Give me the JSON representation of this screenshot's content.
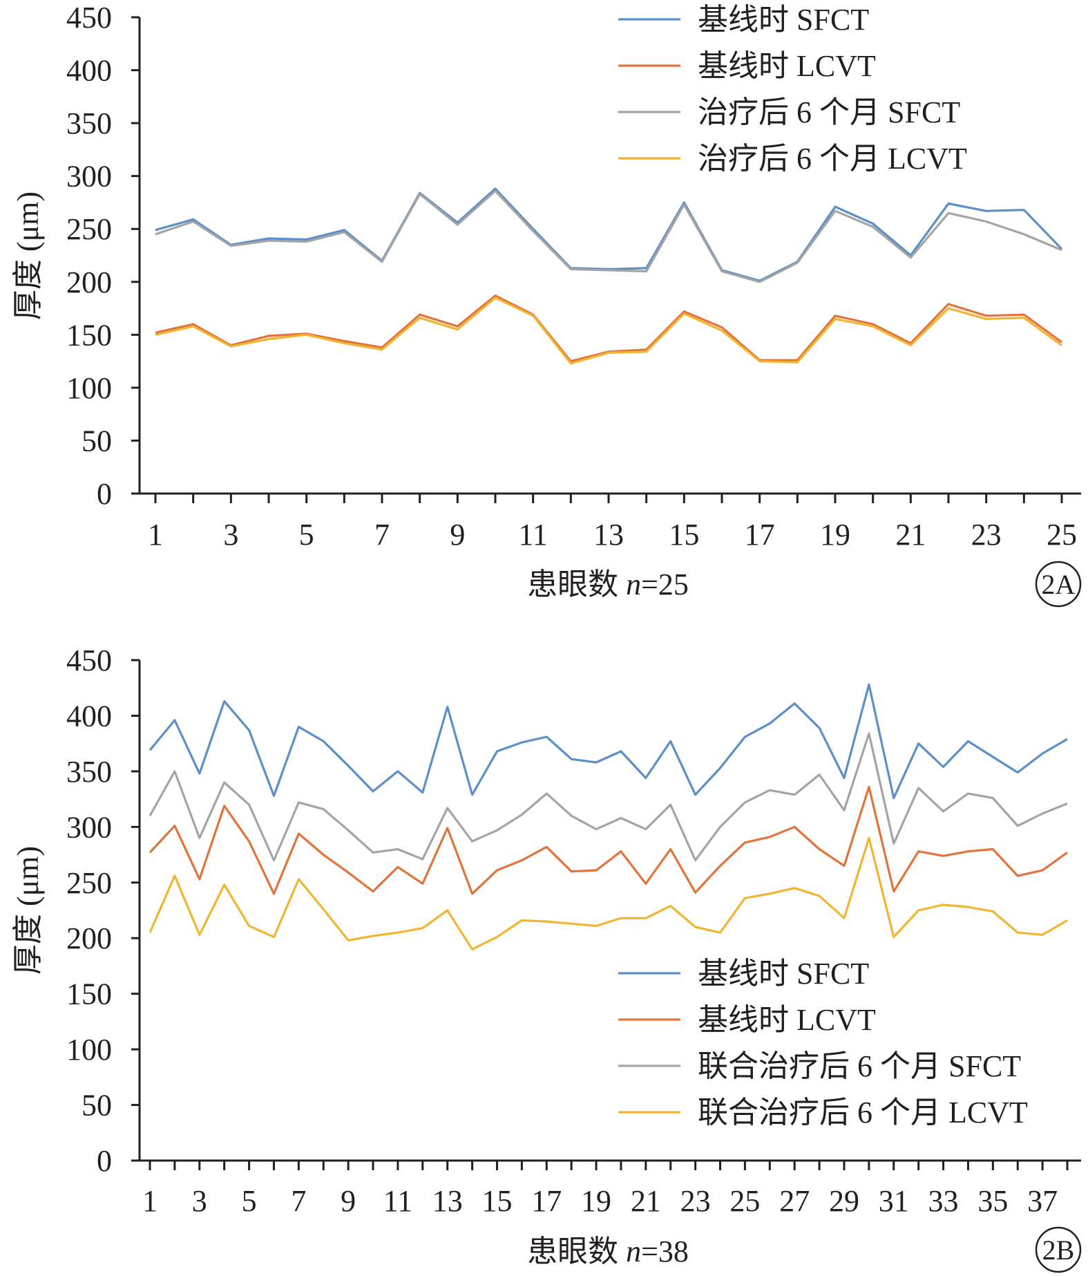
{
  "colors": {
    "axis": "#231f20",
    "SFCT_base": "#5b8fc9",
    "LCVT_base": "#e2733a",
    "SFCT_post": "#a4a4a4",
    "LCVT_post": "#f2b531"
  },
  "chart_data": [
    {
      "type": "line",
      "panel_label": "2A",
      "ylabel": "厚度 (μm)",
      "xlabel_prefix": "患眼数 ",
      "xlabel_var": "n",
      "xlabel_suffix": "=25",
      "ylim": [
        0,
        450
      ],
      "yticks": [
        "0",
        "50",
        "100",
        "150",
        "200",
        "250",
        "300",
        "350",
        "400",
        "450"
      ],
      "xticks": [
        "1",
        "3",
        "5",
        "7",
        "9",
        "11",
        "13",
        "15",
        "17",
        "19",
        "21",
        "23",
        "25"
      ],
      "x": [
        1,
        2,
        3,
        4,
        5,
        6,
        7,
        8,
        9,
        10,
        11,
        12,
        13,
        14,
        15,
        16,
        17,
        18,
        19,
        20,
        21,
        22,
        23,
        24,
        25
      ],
      "legend_position": "top-right",
      "series": [
        {
          "name": "基线时 SFCT",
          "color": "#5b8fc9",
          "values": [
            249,
            259,
            235,
            241,
            240,
            249,
            220,
            284,
            256,
            288,
            250,
            213,
            212,
            213,
            275,
            211,
            201,
            219,
            271,
            255,
            225,
            274,
            267,
            268,
            231
          ]
        },
        {
          "name": "基线时 LCVT",
          "color": "#e2733a",
          "values": [
            152,
            160,
            140,
            149,
            151,
            144,
            138,
            169,
            158,
            187,
            169,
            125,
            134,
            136,
            172,
            157,
            126,
            126,
            168,
            160,
            142,
            179,
            168,
            169,
            143
          ]
        },
        {
          "name": "治疗后 6 个月 SFCT",
          "color": "#a4a4a4",
          "values": [
            245,
            257,
            234,
            239,
            238,
            247,
            219,
            283,
            254,
            286,
            248,
            212,
            211,
            210,
            273,
            210,
            200,
            218,
            267,
            252,
            223,
            265,
            257,
            245,
            230
          ]
        },
        {
          "name": "治疗后 6 个月 LCVT",
          "color": "#f2b531",
          "values": [
            150,
            158,
            139,
            146,
            150,
            142,
            136,
            166,
            155,
            185,
            168,
            123,
            133,
            134,
            170,
            154,
            125,
            124,
            165,
            158,
            140,
            175,
            165,
            166,
            140
          ]
        }
      ]
    },
    {
      "type": "line",
      "panel_label": "2B",
      "ylabel": "厚度 (μm)",
      "xlabel_prefix": "患眼数 ",
      "xlabel_var": "n",
      "xlabel_suffix": "=38",
      "ylim": [
        0,
        450
      ],
      "yticks": [
        "0",
        "50",
        "100",
        "150",
        "200",
        "250",
        "300",
        "350",
        "400",
        "450"
      ],
      "xticks": [
        "1",
        "3",
        "5",
        "7",
        "9",
        "11",
        "13",
        "15",
        "17",
        "19",
        "21",
        "23",
        "25",
        "27",
        "29",
        "31",
        "33",
        "35",
        "37"
      ],
      "x": [
        1,
        2,
        3,
        4,
        5,
        6,
        7,
        8,
        9,
        10,
        11,
        12,
        13,
        14,
        15,
        16,
        17,
        18,
        19,
        20,
        21,
        22,
        23,
        24,
        25,
        26,
        27,
        28,
        29,
        30,
        31,
        32,
        33,
        34,
        35,
        36,
        37,
        38
      ],
      "legend_position": "bottom-right",
      "series": [
        {
          "name": "基线时 SFCT",
          "color": "#5b8fc9",
          "values": [
            369,
            396,
            348,
            413,
            387,
            328,
            390,
            377,
            355,
            332,
            350,
            331,
            408,
            329,
            368,
            376,
            381,
            361,
            358,
            368,
            344,
            377,
            329,
            353,
            381,
            393,
            411,
            389,
            344,
            428,
            326,
            375,
            354,
            377,
            363,
            349,
            366,
            379
          ]
        },
        {
          "name": "基线时 LCVT",
          "color": "#e2733a",
          "values": [
            277,
            301,
            253,
            319,
            287,
            240,
            294,
            275,
            259,
            242,
            264,
            249,
            299,
            240,
            261,
            270,
            282,
            260,
            261,
            278,
            249,
            280,
            241,
            265,
            286,
            291,
            300,
            280,
            265,
            336,
            242,
            278,
            274,
            278,
            280,
            256,
            261,
            277
          ]
        },
        {
          "name": "联合治疗后 6 个月 SFCT",
          "color": "#a4a4a4",
          "values": [
            310,
            350,
            290,
            340,
            320,
            270,
            322,
            316,
            297,
            277,
            280,
            271,
            317,
            287,
            297,
            311,
            330,
            310,
            298,
            308,
            298,
            320,
            270,
            300,
            322,
            333,
            329,
            347,
            315,
            384,
            285,
            335,
            314,
            330,
            326,
            301,
            312,
            321
          ]
        },
        {
          "name": "联合治疗后 6 个月 LCVT",
          "color": "#f2b531",
          "values": [
            205,
            256,
            203,
            248,
            211,
            201,
            253,
            226,
            198,
            202,
            205,
            209,
            225,
            190,
            201,
            216,
            215,
            213,
            211,
            218,
            218,
            229,
            210,
            205,
            236,
            240,
            245,
            238,
            218,
            290,
            201,
            225,
            230,
            228,
            224,
            205,
            203,
            216
          ]
        }
      ]
    }
  ]
}
